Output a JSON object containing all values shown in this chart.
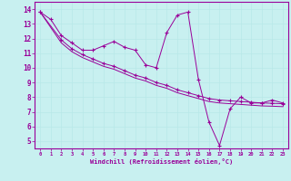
{
  "xlabel": "Windchill (Refroidissement éolien,°C)",
  "bg_color": "#c8f0f0",
  "line_color": "#990099",
  "grid_color": "#b8e8e8",
  "xlim": [
    -0.5,
    23.5
  ],
  "ylim": [
    4.5,
    14.5
  ],
  "xticks": [
    0,
    1,
    2,
    3,
    4,
    5,
    6,
    7,
    8,
    9,
    10,
    11,
    12,
    13,
    14,
    15,
    16,
    17,
    18,
    19,
    20,
    21,
    22,
    23
  ],
  "yticks": [
    5,
    6,
    7,
    8,
    9,
    10,
    11,
    12,
    13,
    14
  ],
  "line1_x": [
    0,
    1,
    2,
    3,
    4,
    5,
    6,
    7,
    8,
    9,
    10,
    11,
    12,
    13,
    14,
    15,
    16,
    17,
    18,
    19,
    20,
    21,
    22,
    23
  ],
  "line1_y": [
    13.8,
    13.3,
    12.2,
    11.7,
    11.2,
    11.2,
    11.5,
    11.8,
    11.4,
    11.2,
    10.2,
    10.0,
    12.4,
    13.6,
    13.8,
    9.2,
    6.3,
    4.7,
    7.2,
    8.0,
    7.6,
    7.6,
    7.8,
    7.6
  ],
  "line2_x": [
    0,
    2,
    3,
    4,
    5,
    6,
    7,
    8,
    9,
    10,
    11,
    12,
    13,
    14,
    15,
    16,
    17,
    18,
    19,
    20,
    21,
    22,
    23
  ],
  "line2_y": [
    13.8,
    11.9,
    11.3,
    10.9,
    10.6,
    10.3,
    10.1,
    9.8,
    9.5,
    9.3,
    9.0,
    8.8,
    8.5,
    8.3,
    8.1,
    7.9,
    7.8,
    7.75,
    7.7,
    7.65,
    7.6,
    7.58,
    7.55
  ],
  "line3_x": [
    0,
    2,
    3,
    4,
    5,
    6,
    7,
    8,
    9,
    10,
    11,
    12,
    13,
    14,
    15,
    16,
    17,
    18,
    19,
    20,
    21,
    22,
    23
  ],
  "line3_y": [
    13.8,
    11.7,
    11.1,
    10.7,
    10.4,
    10.1,
    9.9,
    9.6,
    9.3,
    9.1,
    8.8,
    8.6,
    8.3,
    8.1,
    7.9,
    7.7,
    7.6,
    7.55,
    7.5,
    7.45,
    7.4,
    7.38,
    7.35
  ]
}
